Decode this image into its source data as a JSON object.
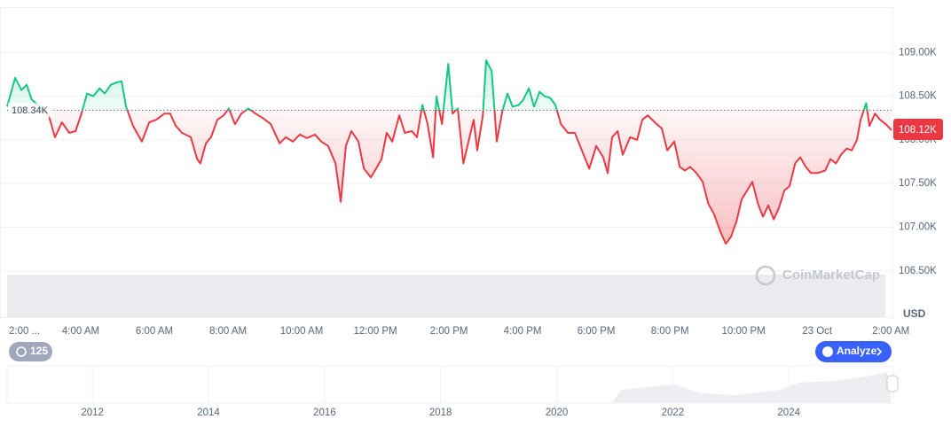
{
  "chart_data": {
    "type": "line",
    "x": [
      2.0,
      2.22,
      2.39,
      2.53,
      2.67,
      2.89,
      3.13,
      3.3,
      3.49,
      3.69,
      3.86,
      4.02,
      4.17,
      4.34,
      4.51,
      4.65,
      4.82,
      4.99,
      5.11,
      5.23,
      5.42,
      5.66,
      5.86,
      6.05,
      6.27,
      6.43,
      6.58,
      6.75,
      6.99,
      7.16,
      7.25,
      7.4,
      7.54,
      7.71,
      7.88,
      8.02,
      8.19,
      8.36,
      8.55,
      8.75,
      8.94,
      9.16,
      9.4,
      9.57,
      9.76,
      9.95,
      10.14,
      10.36,
      10.53,
      10.72,
      10.92,
      11.06,
      11.2,
      11.35,
      11.54,
      11.69,
      11.88,
      12.05,
      12.17,
      12.31,
      12.46,
      12.65,
      12.8,
      12.99,
      13.13,
      13.28,
      13.42,
      13.57,
      13.66,
      13.81,
      13.98,
      14.1,
      14.24,
      14.39,
      14.53,
      14.67,
      14.77,
      14.92,
      15.01,
      15.16,
      15.3,
      15.45,
      15.59,
      15.73,
      15.9,
      16.02,
      16.17,
      16.31,
      16.46,
      16.6,
      16.75,
      16.89,
      17.04,
      17.23,
      17.42,
      17.61,
      17.81,
      18.0,
      18.19,
      18.31,
      18.43,
      18.58,
      18.72,
      18.92,
      19.11,
      19.25,
      19.4,
      19.59,
      19.78,
      19.93,
      20.12,
      20.27,
      20.41,
      20.55,
      20.72,
      20.89,
      21.04,
      21.2,
      21.37,
      21.52,
      21.66,
      21.81,
      21.95,
      22.1,
      22.24,
      22.39,
      22.53,
      22.67,
      22.82,
      22.96,
      23.11,
      23.25,
      23.4,
      23.54,
      23.69,
      23.83,
      24.02,
      24.22,
      24.36,
      24.51,
      24.65,
      24.8,
      24.94,
      25.08,
      25.18,
      25.33,
      25.42,
      25.57,
      25.71,
      25.86,
      26.02
    ],
    "values": [
      108380,
      108710,
      108570,
      108630,
      108460,
      108380,
      108280,
      108030,
      108200,
      108080,
      108100,
      108300,
      108530,
      108500,
      108590,
      108530,
      108630,
      108660,
      108670,
      108380,
      108160,
      107980,
      108200,
      108230,
      108300,
      108300,
      108160,
      108080,
      108030,
      107780,
      107730,
      107960,
      108030,
      108230,
      108280,
      108360,
      108180,
      108300,
      108360,
      108300,
      108250,
      108180,
      107960,
      108030,
      107980,
      108060,
      108020,
      108060,
      107980,
      107930,
      107730,
      107290,
      107930,
      108100,
      107980,
      107670,
      107570,
      107690,
      107780,
      108080,
      107980,
      108280,
      108080,
      108100,
      108030,
      108400,
      108180,
      107800,
      108500,
      108180,
      108870,
      108300,
      108360,
      107730,
      107980,
      108230,
      107880,
      108280,
      108910,
      108790,
      107980,
      108330,
      108530,
      108380,
      108400,
      108460,
      108590,
      108380,
      108550,
      108500,
      108480,
      108400,
      108180,
      108080,
      108080,
      107880,
      107670,
      107930,
      107800,
      107620,
      108030,
      108100,
      107830,
      108030,
      108000,
      108230,
      108280,
      108200,
      108130,
      107880,
      107980,
      107690,
      107650,
      107690,
      107620,
      107520,
      107270,
      107150,
      106950,
      106810,
      106890,
      107070,
      107320,
      107420,
      107520,
      107270,
      107120,
      107250,
      107090,
      107220,
      107420,
      107470,
      107730,
      107800,
      107690,
      107620,
      107620,
      107650,
      107780,
      107730,
      107830,
      107900,
      107880,
      108000,
      108230,
      108420,
      108160,
      108300,
      108230,
      108180,
      108110
    ],
    "color_up": "#16c784",
    "color_down": "#ea3943",
    "baseline": {
      "value": 108340,
      "label": "108.34K"
    },
    "last_price": {
      "value": 108120,
      "label": "108.12K"
    },
    "xlim": [
      2,
      26.02
    ],
    "xticks": [
      {
        "value": 2,
        "label": "2:00 ..."
      },
      {
        "value": 4,
        "label": "4:00 AM"
      },
      {
        "value": 6,
        "label": "6:00 AM"
      },
      {
        "value": 8,
        "label": "8:00 AM"
      },
      {
        "value": 10,
        "label": "10:00 AM"
      },
      {
        "value": 12,
        "label": "12:00 PM"
      },
      {
        "value": 14,
        "label": "2:00 PM"
      },
      {
        "value": 16,
        "label": "4:00 PM"
      },
      {
        "value": 18,
        "label": "6:00 PM"
      },
      {
        "value": 20,
        "label": "8:00 PM"
      },
      {
        "value": 22,
        "label": "10:00 PM"
      },
      {
        "value": 24,
        "label": "23 Oct"
      },
      {
        "value": 26,
        "label": "2:00 AM"
      }
    ],
    "ylim": [
      105970,
      109520
    ],
    "yticks": [
      {
        "value": 106500,
        "label": "106.50K"
      },
      {
        "value": 107000,
        "label": "107.00K"
      },
      {
        "value": 107500,
        "label": "107.50K"
      },
      {
        "value": 108000,
        "label": "108.00K"
      },
      {
        "value": 108500,
        "label": "108.50K"
      },
      {
        "value": 109000,
        "label": "109.00K"
      }
    ],
    "grid": true,
    "currency": "USD",
    "watermark": "CoinMarketCap",
    "history_count": 125,
    "analyze_button": "Analyze",
    "navigator": {
      "xlim": [
        2010.53,
        2025.77
      ],
      "xticks": [
        2012,
        2014,
        2016,
        2018,
        2020,
        2022,
        2024
      ]
    }
  }
}
